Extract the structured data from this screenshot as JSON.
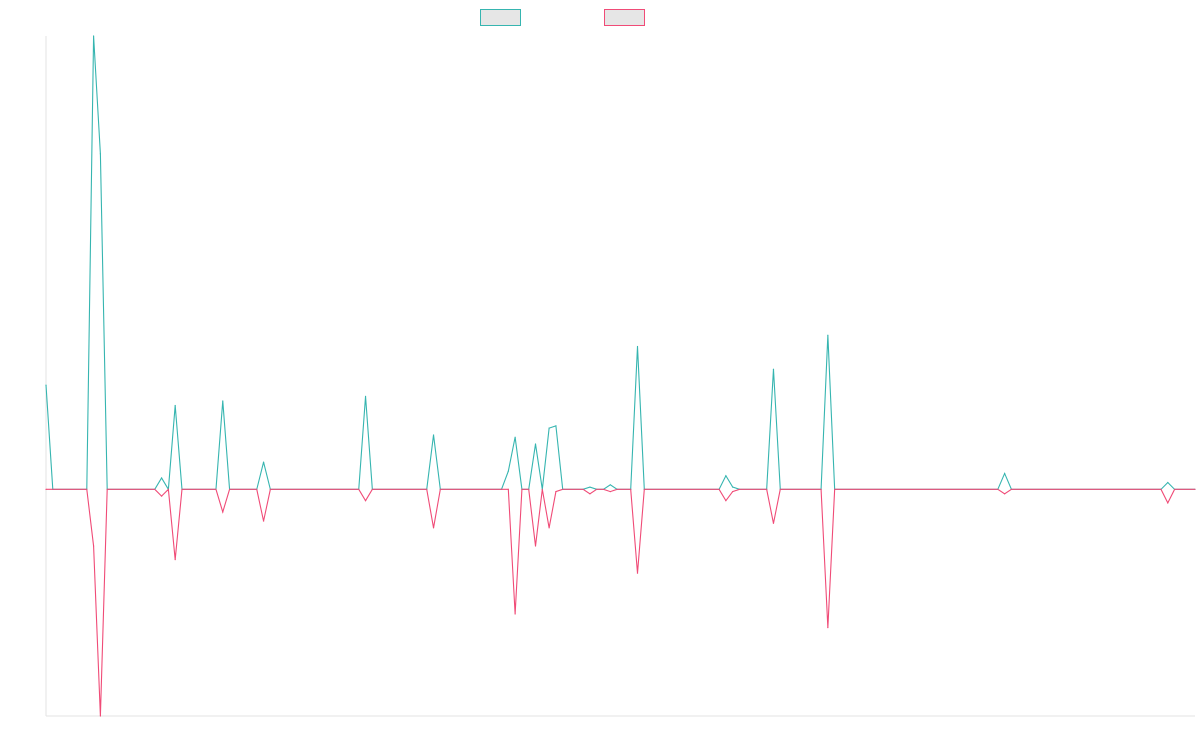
{
  "chart_data": {
    "type": "line",
    "title": "",
    "xlabel": "",
    "ylabel": "",
    "legend_position": "top-center",
    "grid": false,
    "x_count": 170,
    "ylim": [
      -100,
      200
    ],
    "series": [
      {
        "color": "#36b5b0",
        "points": [
          [
            0,
            46
          ],
          [
            1,
            0
          ],
          [
            6,
            0
          ],
          [
            7,
            200
          ],
          [
            8,
            148
          ],
          [
            9,
            0
          ],
          [
            16,
            0
          ],
          [
            17,
            5
          ],
          [
            18,
            0
          ],
          [
            19,
            37
          ],
          [
            20,
            0
          ],
          [
            25,
            0
          ],
          [
            26,
            39
          ],
          [
            27,
            0
          ],
          [
            31,
            0
          ],
          [
            32,
            12
          ],
          [
            33,
            0
          ],
          [
            46,
            0
          ],
          [
            47,
            41
          ],
          [
            48,
            0
          ],
          [
            56,
            0
          ],
          [
            57,
            24
          ],
          [
            58,
            0
          ],
          [
            67,
            0
          ],
          [
            68,
            8
          ],
          [
            69,
            23
          ],
          [
            70,
            0
          ],
          [
            71,
            0
          ],
          [
            72,
            20
          ],
          [
            73,
            0
          ],
          [
            74,
            27
          ],
          [
            75,
            28
          ],
          [
            76,
            0
          ],
          [
            79,
            0
          ],
          [
            80,
            1
          ],
          [
            81,
            0
          ],
          [
            82,
            0
          ],
          [
            83,
            2
          ],
          [
            84,
            0
          ],
          [
            86,
            0
          ],
          [
            87,
            63
          ],
          [
            88,
            0
          ],
          [
            99,
            0
          ],
          [
            100,
            6
          ],
          [
            101,
            1
          ],
          [
            102,
            0
          ],
          [
            106,
            0
          ],
          [
            107,
            53
          ],
          [
            108,
            0
          ],
          [
            114,
            0
          ],
          [
            115,
            68
          ],
          [
            116,
            0
          ],
          [
            140,
            0
          ],
          [
            141,
            7
          ],
          [
            142,
            0
          ],
          [
            164,
            0
          ],
          [
            165,
            3
          ],
          [
            166,
            0
          ],
          [
            169,
            0
          ]
        ]
      },
      {
        "color": "#f04b77",
        "points": [
          [
            0,
            0
          ],
          [
            1,
            0
          ],
          [
            6,
            0
          ],
          [
            7,
            -25
          ],
          [
            8,
            -100
          ],
          [
            9,
            0
          ],
          [
            16,
            0
          ],
          [
            17,
            -3
          ],
          [
            18,
            0
          ],
          [
            19,
            -31
          ],
          [
            20,
            0
          ],
          [
            25,
            0
          ],
          [
            26,
            -10
          ],
          [
            27,
            0
          ],
          [
            31,
            0
          ],
          [
            32,
            -14
          ],
          [
            33,
            0
          ],
          [
            46,
            0
          ],
          [
            47,
            -5
          ],
          [
            48,
            0
          ],
          [
            56,
            0
          ],
          [
            57,
            -17
          ],
          [
            58,
            0
          ],
          [
            67,
            0
          ],
          [
            68,
            0
          ],
          [
            69,
            -55
          ],
          [
            70,
            0
          ],
          [
            71,
            0
          ],
          [
            72,
            -25
          ],
          [
            73,
            0
          ],
          [
            74,
            -17
          ],
          [
            75,
            -1
          ],
          [
            76,
            0
          ],
          [
            79,
            0
          ],
          [
            80,
            -2
          ],
          [
            81,
            0
          ],
          [
            82,
            0
          ],
          [
            83,
            -1
          ],
          [
            84,
            0
          ],
          [
            86,
            0
          ],
          [
            87,
            -37
          ],
          [
            88,
            0
          ],
          [
            99,
            0
          ],
          [
            100,
            -5
          ],
          [
            101,
            -1
          ],
          [
            102,
            0
          ],
          [
            106,
            0
          ],
          [
            107,
            -15
          ],
          [
            108,
            0
          ],
          [
            114,
            0
          ],
          [
            115,
            -61
          ],
          [
            116,
            0
          ],
          [
            140,
            0
          ],
          [
            141,
            -2
          ],
          [
            142,
            0
          ],
          [
            164,
            0
          ],
          [
            165,
            -6
          ],
          [
            166,
            0
          ],
          [
            169,
            0
          ]
        ]
      }
    ]
  }
}
